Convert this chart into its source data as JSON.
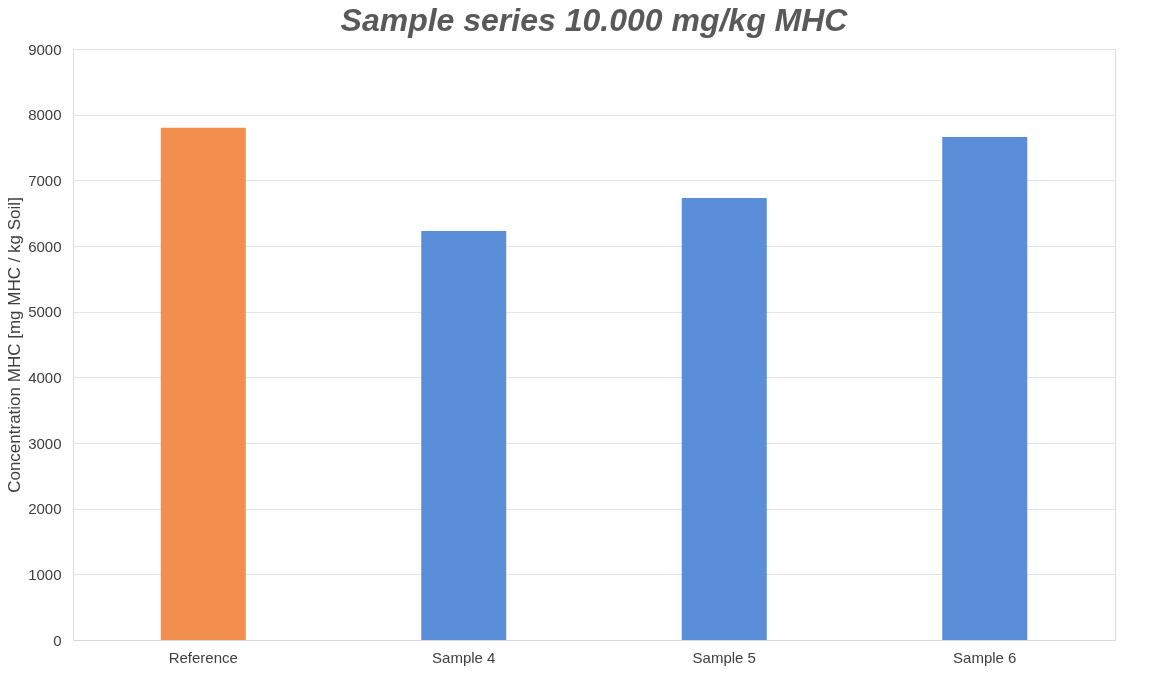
{
  "chart_data": {
    "type": "bar",
    "title": "Sample series 10.000 mg/kg MHC",
    "ylabel": "Concentration MHC [mg MHC / kg Soil]",
    "categories": [
      "Reference",
      "Sample 4",
      "Sample 5",
      "Sample 6"
    ],
    "values": [
      7800,
      6230,
      6730,
      7660
    ],
    "colors": [
      "#f28e4e",
      "#5b8ed8",
      "#5b8ed8",
      "#5b8ed8"
    ],
    "ylim": [
      0,
      9000
    ],
    "yticks": [
      0,
      1000,
      2000,
      3000,
      4000,
      5000,
      6000,
      7000,
      8000,
      9000
    ],
    "grid": "y"
  }
}
